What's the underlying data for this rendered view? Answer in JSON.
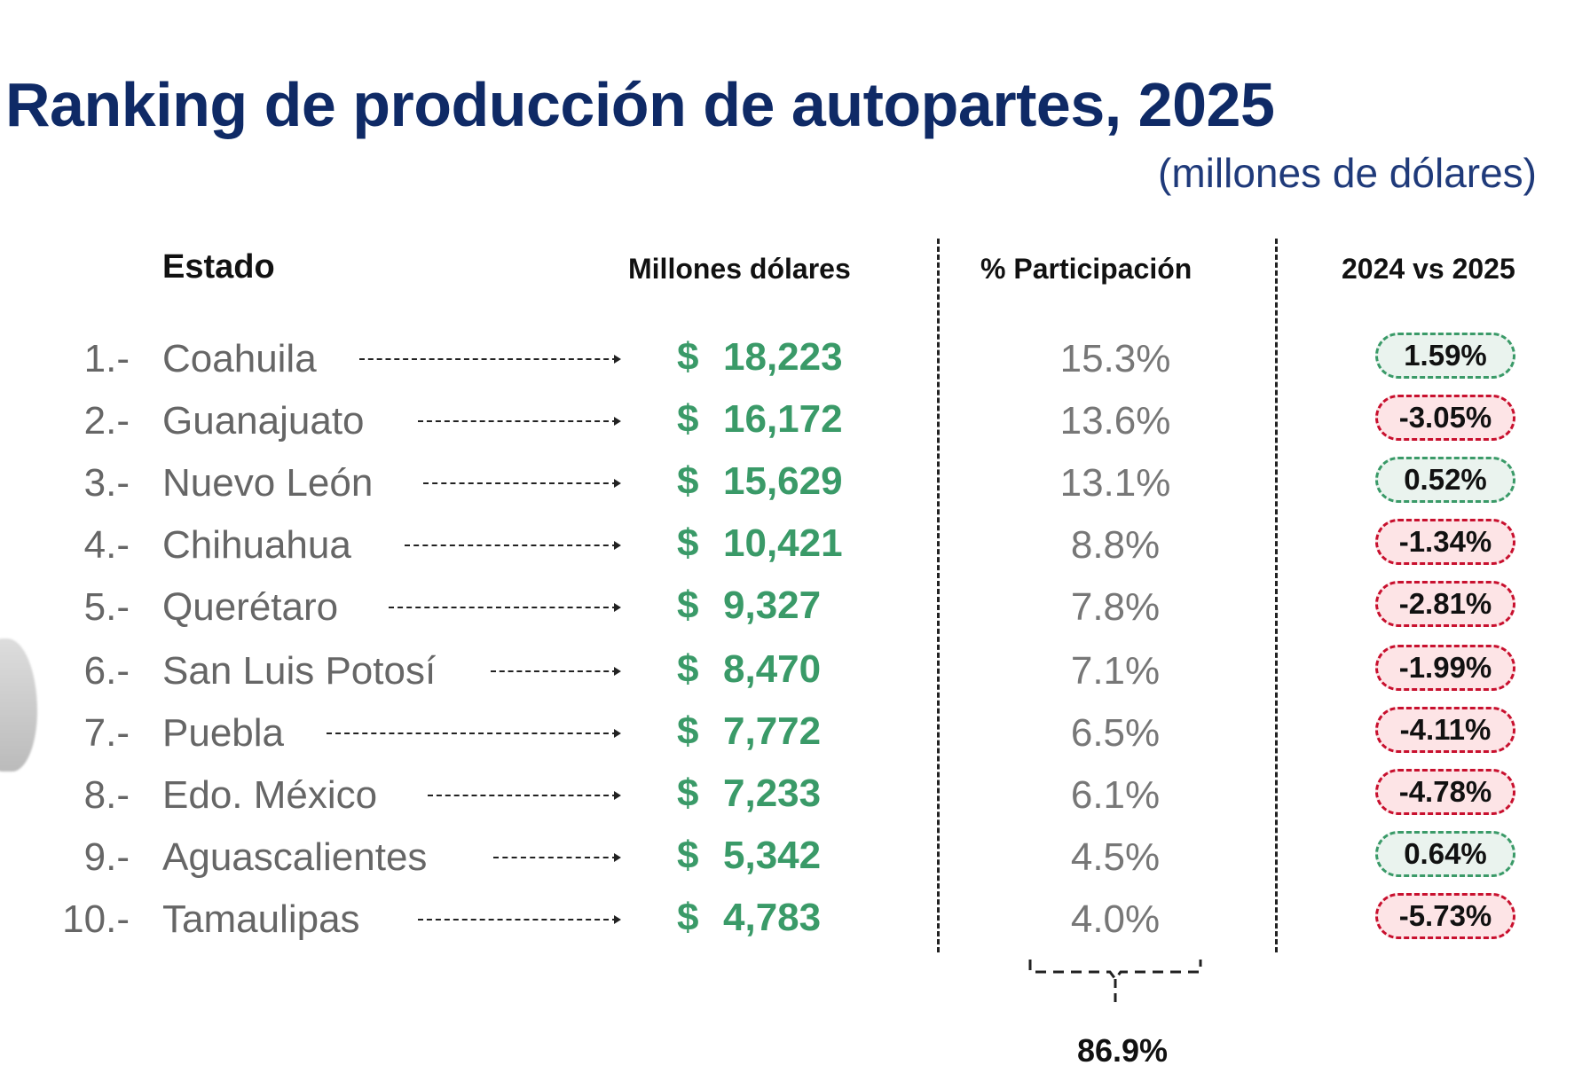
{
  "title": "Ranking de producción de autopartes, 2025",
  "subtitle": "(millones de dólares)",
  "headers": {
    "estado": "Estado",
    "millones": "Millones dólares",
    "participacion": "% Participación",
    "variacion": "2024 vs 2025"
  },
  "currency_symbol": "$",
  "colors": {
    "title": "#0f2a66",
    "value": "#3a9a68",
    "positive": "#3a9a68",
    "negative": "#c8102e"
  },
  "chart_data": {
    "type": "table",
    "title": "Ranking de producción de autopartes, 2025",
    "subtitle": "(millones de dólares)",
    "columns": [
      "Estado",
      "Millones dólares",
      "% Participación",
      "2024 vs 2025"
    ],
    "rows": [
      {
        "rank": "1.-",
        "state": "Coahuila",
        "value": "18,223",
        "share": "15.3%",
        "change": "1.59%",
        "trend": "pos"
      },
      {
        "rank": "2.-",
        "state": "Guanajuato",
        "value": "16,172",
        "share": "13.6%",
        "change": "-3.05%",
        "trend": "neg"
      },
      {
        "rank": "3.-",
        "state": "Nuevo León",
        "value": "15,629",
        "share": "13.1%",
        "change": "0.52%",
        "trend": "pos"
      },
      {
        "rank": "4.-",
        "state": "Chihuahua",
        "value": "10,421",
        "share": "8.8%",
        "change": "-1.34%",
        "trend": "neg"
      },
      {
        "rank": "5.-",
        "state": "Querétaro",
        "value": "9,327",
        "share": "7.8%",
        "change": "-2.81%",
        "trend": "neg"
      },
      {
        "rank": "6.-",
        "state": "San Luis Potosí",
        "value": "8,470",
        "share": "7.1%",
        "change": "-1.99%",
        "trend": "neg"
      },
      {
        "rank": "7.-",
        "state": "Puebla",
        "value": "7,772",
        "share": "6.5%",
        "change": "-4.11%",
        "trend": "neg"
      },
      {
        "rank": "8.-",
        "state": "Edo. México",
        "value": "7,233",
        "share": "6.1%",
        "change": "-4.78%",
        "trend": "neg"
      },
      {
        "rank": "9.-",
        "state": "Aguascalientes",
        "value": "5,342",
        "share": "4.5%",
        "change": "0.64%",
        "trend": "pos"
      },
      {
        "rank": "10.-",
        "state": "Tamaulipas",
        "value": "4,783",
        "share": "4.0%",
        "change": "-5.73%",
        "trend": "neg"
      }
    ],
    "total_share": "86.9%"
  }
}
